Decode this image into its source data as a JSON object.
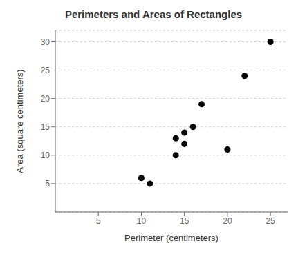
{
  "chart_data": {
    "type": "scatter",
    "title": "Perimeters and Areas of Rectangles",
    "xlabel": "Perimeter (centimeters)",
    "ylabel": "Area (square centimeters)",
    "x": [
      10,
      11,
      14,
      14,
      15,
      15,
      16,
      17,
      20,
      22,
      25
    ],
    "values": [
      6,
      5,
      10,
      13,
      14,
      12,
      15,
      19,
      11,
      24,
      30
    ],
    "color": "black",
    "xlim": [
      0,
      27
    ],
    "ylim": [
      0,
      32
    ],
    "xticks": [
      5,
      10,
      15,
      20,
      25
    ],
    "yticks": [
      5,
      10,
      15,
      20,
      25,
      30
    ],
    "grid": true
  }
}
